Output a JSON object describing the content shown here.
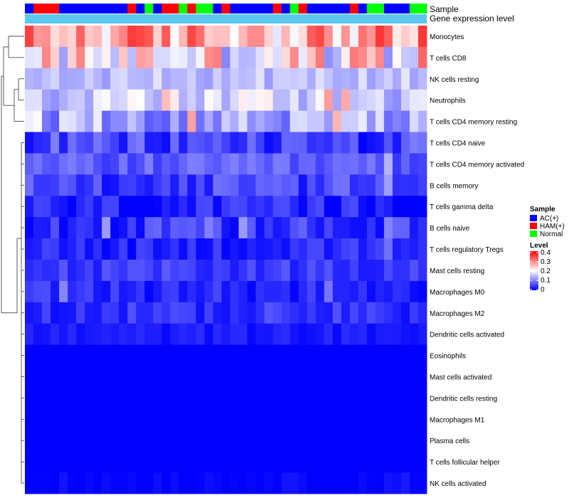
{
  "chart_data": {
    "type": "heatmap",
    "annotation_rows": [
      {
        "label": "Sample"
      },
      {
        "label": "Gene expression level"
      }
    ],
    "gene_expression_color": "#5bc8ef",
    "sample_groups": [
      "AC",
      "HAM",
      "HAM",
      "HAM",
      "AC",
      "AC",
      "AC",
      "AC",
      "AC",
      "AC",
      "AC",
      "AC",
      "HAM",
      "AC",
      "N",
      "AC",
      "HAM",
      "HAM",
      "N",
      "HAM",
      "N",
      "N",
      "AC",
      "HAM",
      "AC",
      "AC",
      "AC",
      "AC",
      "AC",
      "HAM",
      "AC",
      "N",
      "HAM",
      "AC",
      "AC",
      "AC",
      "AC",
      "AC",
      "HAM",
      "AC",
      "N",
      "N",
      "AC",
      "AC",
      "AC",
      "N",
      "N"
    ],
    "legend": {
      "sample_title": "Sample",
      "sample_items": [
        {
          "key": "AC",
          "label": "AC(+)",
          "color": "#0000ff"
        },
        {
          "key": "HAM",
          "label": "HAM(+)",
          "color": "#ff0000"
        },
        {
          "key": "N",
          "label": "Normal",
          "color": "#00ff00"
        }
      ],
      "level_title": "Level",
      "level_ticks": [
        "0.4",
        "0.3",
        "0.2",
        "0.1",
        "0"
      ],
      "level_range": [
        0,
        0.4
      ],
      "color_low": "#0000ff",
      "color_mid": "#ffffff",
      "color_high": "#ff0000"
    },
    "rows": [
      {
        "label": "Monocytes",
        "base": 0.27,
        "spread": 0.09
      },
      {
        "label": "T cells CD8",
        "base": 0.21,
        "spread": 0.11
      },
      {
        "label": "NK cells resting",
        "base": 0.15,
        "spread": 0.03
      },
      {
        "label": "Neutrophils",
        "base": 0.17,
        "spread": 0.06
      },
      {
        "label": "T cells CD4 memory resting",
        "base": 0.13,
        "spread": 0.06
      },
      {
        "label": "T cells CD4 naive",
        "base": 0.05,
        "spread": 0.05
      },
      {
        "label": "T cells CD4 memory activated",
        "base": 0.07,
        "spread": 0.03
      },
      {
        "label": "B cells memory",
        "base": 0.05,
        "spread": 0.04
      },
      {
        "label": "T cells gamma delta",
        "base": 0.02,
        "spread": 0.04
      },
      {
        "label": "B cells naive",
        "base": 0.04,
        "spread": 0.04
      },
      {
        "label": "T cells regulatory  Tregs",
        "base": 0.03,
        "spread": 0.03
      },
      {
        "label": "Mast cells resting",
        "base": 0.045,
        "spread": 0.025
      },
      {
        "label": "Macrophages M0",
        "base": 0.03,
        "spread": 0.03
      },
      {
        "label": "Macrophages M2",
        "base": 0.035,
        "spread": 0.025
      },
      {
        "label": "Dendritic cells activated",
        "base": 0.02,
        "spread": 0.015
      },
      {
        "label": "Eosinophils",
        "base": 0,
        "spread": 0
      },
      {
        "label": "Mast cells activated",
        "base": 0,
        "spread": 0
      },
      {
        "label": "Dendritic cells resting",
        "base": 0,
        "spread": 0
      },
      {
        "label": "Macrophages M1",
        "base": 0,
        "spread": 0
      },
      {
        "label": "Plasma cells",
        "base": 0,
        "spread": 0
      },
      {
        "label": "T cells follicular helper",
        "base": 0,
        "spread": 0
      },
      {
        "label": "NK cells activated",
        "base": 0.005,
        "spread": 0.01
      }
    ]
  }
}
